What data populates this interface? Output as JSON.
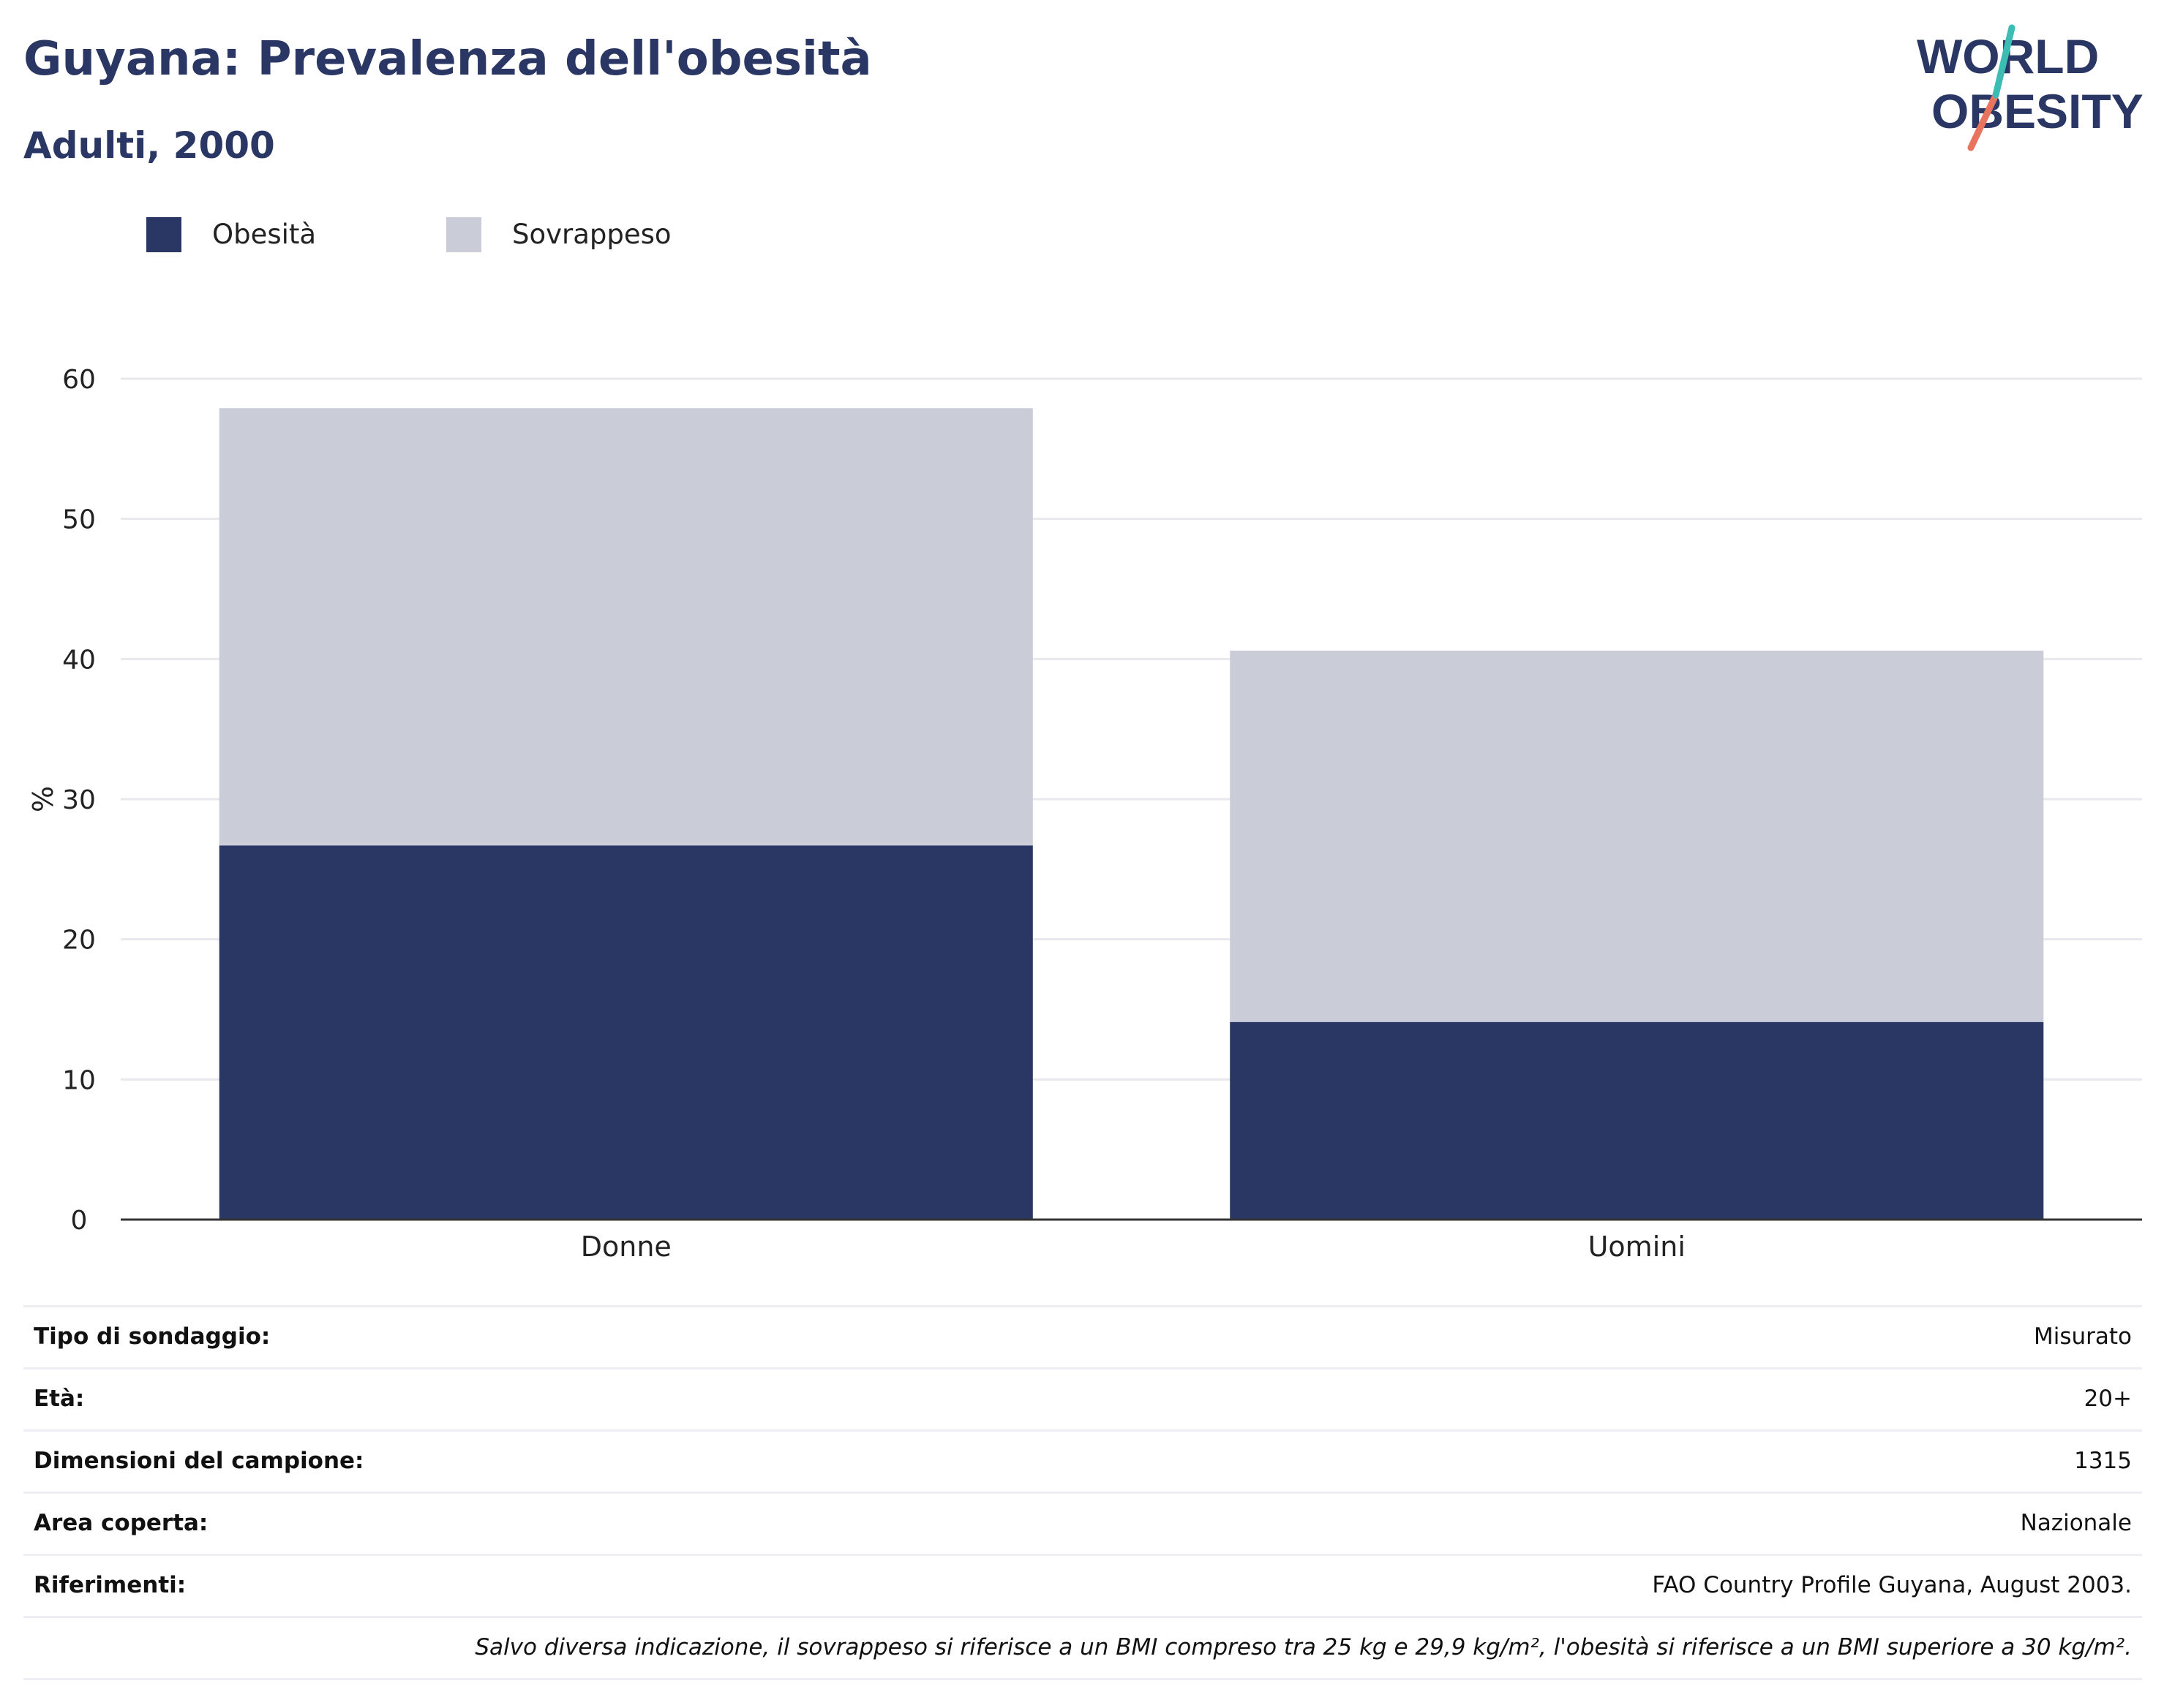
{
  "header": {
    "title": "Guyana: Prevalenza dell'obesità",
    "subtitle": "Adulti, 2000"
  },
  "logo": {
    "line1": "WORLD",
    "line2": "OBESITY"
  },
  "colors": {
    "obesity": "#2a3764",
    "overweight": "#cacdd8",
    "title": "#2a3764",
    "grid": "#e8e9ee",
    "axis": "#333333"
  },
  "chart_data": {
    "type": "bar",
    "stacked": true,
    "categories": [
      "Donne",
      "Uomini"
    ],
    "series": [
      {
        "name": "Obesità",
        "values": [
          26.7,
          14.1
        ]
      },
      {
        "name": "Sovrappeso",
        "values": [
          31.2,
          26.5
        ]
      }
    ],
    "ylabel": "%",
    "ylim": [
      0,
      60
    ],
    "yticks": [
      0,
      10,
      20,
      30,
      40,
      50,
      60
    ],
    "grid": true,
    "legend": "top-left"
  },
  "info": {
    "rows": [
      {
        "label": "Tipo di sondaggio:",
        "value": "Misurato"
      },
      {
        "label": "Età:",
        "value": "20+"
      },
      {
        "label": "Dimensioni del campione:",
        "value": "1315"
      },
      {
        "label": "Area coperta:",
        "value": "Nazionale"
      },
      {
        "label": "Riferimenti:",
        "value": "FAO Country Profile Guyana, August 2003."
      }
    ],
    "note": "Salvo diversa indicazione, il sovrappeso si riferisce a un BMI compreso tra 25 kg e 29,9 kg/m², l'obesità si riferisce a un BMI superiore a 30 kg/m²."
  }
}
